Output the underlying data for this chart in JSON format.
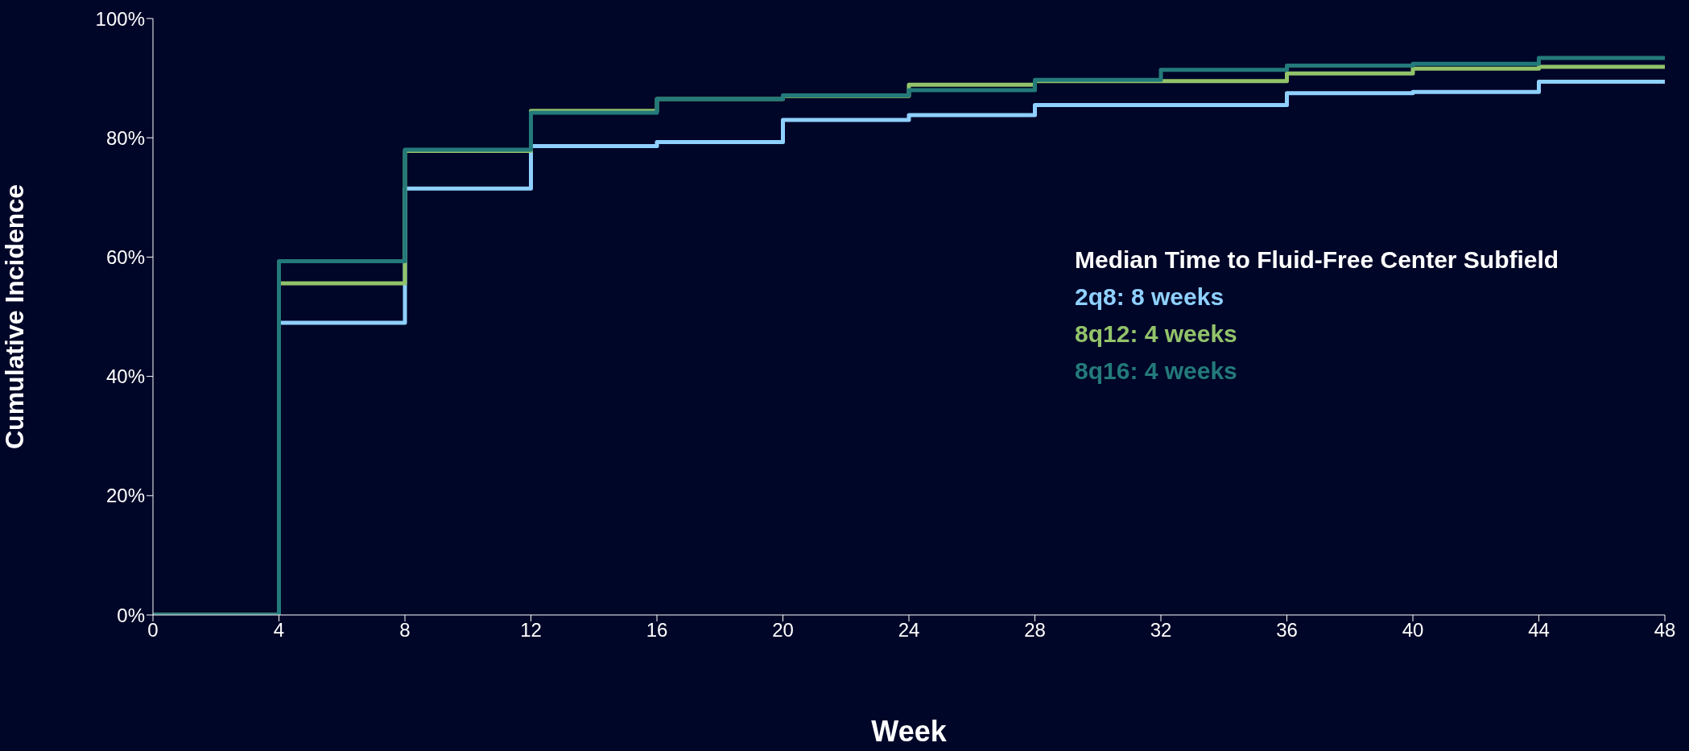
{
  "chart_data": {
    "type": "step",
    "xlabel": "Week",
    "ylabel": "Cumulative Incidence",
    "legend_title": "Median Time to Fluid-Free Center Subfield",
    "x": [
      0,
      4,
      8,
      12,
      16,
      20,
      24,
      28,
      32,
      36,
      40,
      44,
      48
    ],
    "series": [
      {
        "name": "2q8: 8 weeks",
        "color": "#8fd0ff",
        "values": [
          0,
          49.0,
          71.5,
          78.6,
          79.3,
          83.0,
          83.8,
          85.5,
          85.5,
          87.5,
          87.7,
          89.4,
          89.4
        ]
      },
      {
        "name": "8q12: 4 weeks",
        "color": "#92c36a",
        "values": [
          0,
          55.6,
          77.8,
          84.5,
          86.5,
          87.0,
          88.9,
          89.5,
          89.5,
          90.8,
          91.6,
          91.9,
          91.9
        ]
      },
      {
        "name": "8q16: 4 weeks",
        "color": "#237a7a",
        "values": [
          0,
          59.3,
          78.0,
          84.2,
          86.5,
          87.1,
          88.0,
          89.7,
          91.4,
          92.1,
          92.4,
          93.4,
          93.4
        ]
      }
    ],
    "xlim": [
      0,
      48
    ],
    "xticks": [
      0,
      4,
      8,
      12,
      16,
      20,
      24,
      28,
      32,
      36,
      40,
      44,
      48
    ],
    "ylim": [
      0,
      100
    ],
    "yticks": [
      {
        "value": 0,
        "label": "0%"
      },
      {
        "value": 20,
        "label": "20%"
      },
      {
        "value": 40,
        "label": "40%"
      },
      {
        "value": 60,
        "label": "60%"
      },
      {
        "value": 80,
        "label": "80%"
      },
      {
        "value": 100,
        "label": "100%"
      }
    ],
    "legend": "right",
    "grid": false,
    "marker": "none",
    "line_style": "solid"
  }
}
